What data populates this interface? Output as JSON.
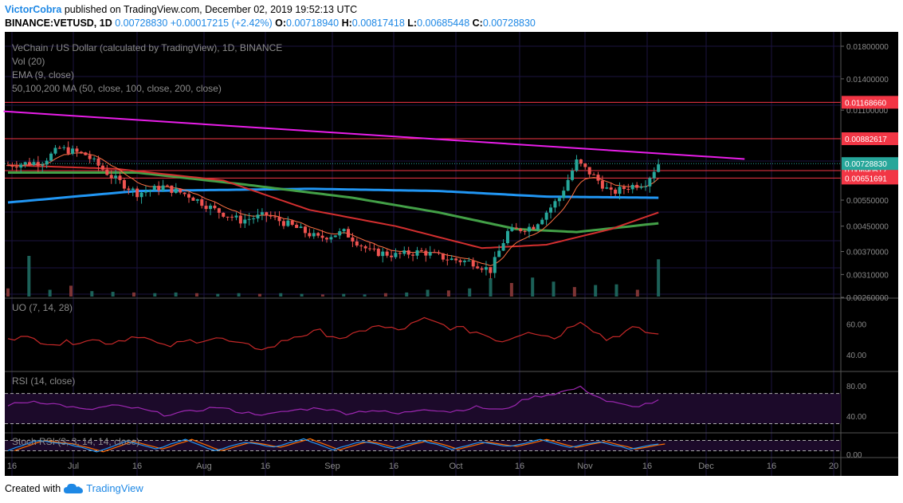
{
  "header": {
    "author": "VictorCobra",
    "published_text": "published on TradingView.com, December 02, 2019 19:52:13 UTC",
    "symbol": "BINANCE:VETUSD, 1D",
    "last": "0.00728830",
    "change": "+0.00017215 (+2.42%)",
    "o_label": "O:",
    "open": "0.00718940",
    "h_label": "H:",
    "high": "0.00817418",
    "l_label": "L:",
    "low": "0.00685448",
    "c_label": "C:",
    "close": "0.00728830"
  },
  "footer": {
    "created_with": "Created with",
    "brand": "TradingView"
  },
  "colors": {
    "background": "#000000",
    "up": "#26a69a",
    "down": "#ef5350",
    "trendline": "#e91ee9",
    "ema": "#ff7043",
    "ma50": "#d32f2f",
    "ma100": "#43a047",
    "ma200": "#2196f3",
    "hline": "#f23645",
    "uo": "#c62828",
    "rsi": "#9c27b0",
    "stoch_k": "#2196f3",
    "stoch_d": "#ff6d00"
  },
  "chart_data": {
    "type": "candlestick",
    "instrument": "VeChain / US Dollar (calculated by TradingView), 1D, BINANCE",
    "legend": [
      "Vol (20)",
      "EMA (9, close)",
      "50,100,200 MA (50, close, 100, close, 200, close)"
    ],
    "price_scale": "log",
    "price_axis_labels": [
      "0.01800000",
      "0.01400000",
      "0.01100000",
      "0.00550000",
      "0.00450000",
      "0.00370000",
      "0.00310000",
      "0.00260000"
    ],
    "horizontal_levels": [
      {
        "value": 0.0116866,
        "label": "0.01168660"
      },
      {
        "value": 0.00882617,
        "label": "0.00882617"
      },
      {
        "value": 0.00690517,
        "label": "0.00690517"
      },
      {
        "value": 0.00651691,
        "label": "0.00651691"
      }
    ],
    "last_price": {
      "value": 0.0072883,
      "label": "0.00728830"
    },
    "x_labels": [
      "16",
      "Jul",
      "16",
      "Aug",
      "16",
      "Sep",
      "16",
      "Oct",
      "16",
      "Nov",
      "16",
      "Dec",
      "16",
      "20"
    ],
    "approx_close_series": [
      {
        "day": 0,
        "close": 0.0072
      },
      {
        "day": 8,
        "close": 0.0074
      },
      {
        "day": 12,
        "close": 0.0082
      },
      {
        "day": 18,
        "close": 0.0078
      },
      {
        "day": 24,
        "close": 0.0066
      },
      {
        "day": 30,
        "close": 0.0058
      },
      {
        "day": 36,
        "close": 0.0061
      },
      {
        "day": 42,
        "close": 0.0057
      },
      {
        "day": 48,
        "close": 0.0051
      },
      {
        "day": 54,
        "close": 0.0047
      },
      {
        "day": 60,
        "close": 0.0049
      },
      {
        "day": 66,
        "close": 0.0045
      },
      {
        "day": 72,
        "close": 0.0041
      },
      {
        "day": 78,
        "close": 0.0043
      },
      {
        "day": 84,
        "close": 0.0037
      },
      {
        "day": 90,
        "close": 0.0036
      },
      {
        "day": 96,
        "close": 0.0037
      },
      {
        "day": 102,
        "close": 0.0035
      },
      {
        "day": 108,
        "close": 0.0034
      },
      {
        "day": 112,
        "close": 0.0032
      },
      {
        "day": 116,
        "close": 0.0043
      },
      {
        "day": 122,
        "close": 0.0045
      },
      {
        "day": 128,
        "close": 0.0056
      },
      {
        "day": 132,
        "close": 0.0074
      },
      {
        "day": 136,
        "close": 0.0066
      },
      {
        "day": 140,
        "close": 0.0058
      },
      {
        "day": 144,
        "close": 0.0061
      },
      {
        "day": 148,
        "close": 0.0063
      },
      {
        "day": 151,
        "close": 0.0072883
      }
    ],
    "trendline": [
      {
        "day": -1,
        "value": 0.0109
      },
      {
        "day": 171,
        "value": 0.00755
      }
    ],
    "ma200": [
      {
        "day": 0,
        "value": 0.0054
      },
      {
        "day": 30,
        "value": 0.0059
      },
      {
        "day": 70,
        "value": 0.006
      },
      {
        "day": 100,
        "value": 0.0059
      },
      {
        "day": 125,
        "value": 0.00565
      },
      {
        "day": 151,
        "value": 0.0056
      }
    ],
    "ma100": [
      {
        "day": 0,
        "value": 0.0068
      },
      {
        "day": 30,
        "value": 0.0068
      },
      {
        "day": 55,
        "value": 0.0062
      },
      {
        "day": 80,
        "value": 0.0056
      },
      {
        "day": 100,
        "value": 0.005
      },
      {
        "day": 118,
        "value": 0.0044
      },
      {
        "day": 132,
        "value": 0.0043
      },
      {
        "day": 151,
        "value": 0.0046
      }
    ],
    "ma50": [
      {
        "day": 0,
        "value": 0.0072
      },
      {
        "day": 25,
        "value": 0.007
      },
      {
        "day": 50,
        "value": 0.0064
      },
      {
        "day": 70,
        "value": 0.0051
      },
      {
        "day": 90,
        "value": 0.0045
      },
      {
        "day": 110,
        "value": 0.0038
      },
      {
        "day": 125,
        "value": 0.0039
      },
      {
        "day": 140,
        "value": 0.0044
      },
      {
        "day": 151,
        "value": 0.005
      }
    ],
    "volume": [
      0.12,
      0.6,
      0.1,
      0.16,
      0.08,
      0.07,
      0.06,
      0.05,
      0.06,
      0.05,
      0.04,
      0.05,
      0.04,
      0.05,
      0.04,
      0.03,
      0.04,
      0.03,
      0.05,
      0.06,
      0.1,
      0.09,
      0.12,
      0.27,
      0.2,
      0.28,
      0.22,
      0.14,
      0.17,
      0.18,
      0.1,
      0.55
    ],
    "oscillators": [
      {
        "name": "UO",
        "label": "UO (7, 14, 28)",
        "axis_labels": [
          "60.00",
          "40.00"
        ],
        "approx_values": [
          52,
          50,
          47,
          50,
          48,
          53,
          45,
          49,
          51,
          46,
          44,
          52,
          55,
          50,
          59,
          56,
          63,
          58,
          55,
          49,
          56,
          51,
          63,
          50,
          57,
          53
        ]
      },
      {
        "name": "RSI",
        "label": "RSI (14, close)",
        "axis_labels": [
          "80.00",
          "40.00"
        ],
        "approx_values": [
          55,
          60,
          55,
          48,
          54,
          50,
          42,
          46,
          52,
          45,
          42,
          48,
          51,
          44,
          48,
          43,
          50,
          46,
          52,
          48,
          64,
          70,
          78,
          60,
          52,
          60
        ]
      },
      {
        "name": "Stoch RSI",
        "label": "Stoch RSI (3, 3, 14, 14, close)",
        "axis_labels": [
          "0.00"
        ],
        "approx_values": [
          20,
          80,
          60,
          15,
          75,
          30,
          85,
          20,
          70,
          40,
          90,
          25,
          75,
          35,
          80,
          30,
          70,
          45,
          85,
          40,
          75,
          30,
          60
        ]
      }
    ]
  }
}
